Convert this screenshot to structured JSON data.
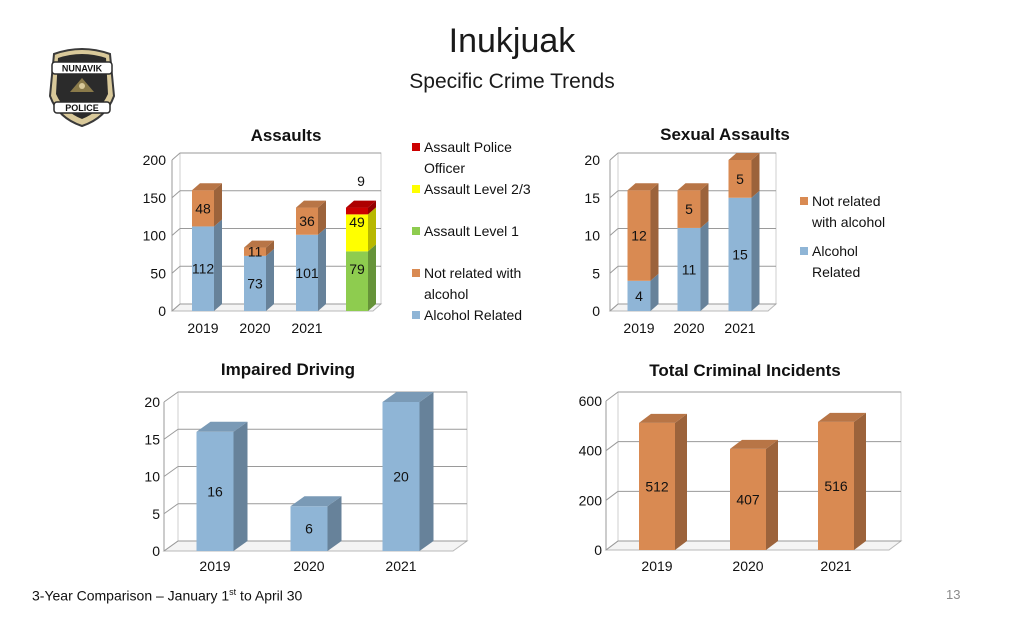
{
  "page": {
    "title": "Inukjuak",
    "subtitle": "Specific Crime Trends",
    "footer_text": "3-Year Comparison – January 1",
    "footer_sup": "st",
    "footer_tail": " to April 30",
    "page_number": "13",
    "logo": {
      "top_text": "NUNAVIK",
      "bottom_text": "POLICE"
    }
  },
  "colors": {
    "blue": "#8fb5d6",
    "orange": "#d98a52",
    "green": "#8ecc4f",
    "yellow": "#ffff00",
    "red": "#cc0000"
  },
  "chart_data": [
    {
      "type": "bar",
      "stacked": true,
      "title": "Assaults",
      "categories": [
        "2019",
        "2020",
        "2021",
        ""
      ],
      "ylim": [
        0,
        200
      ],
      "yticks": [
        0,
        50,
        100,
        150,
        200
      ],
      "grid": true,
      "legend_position": "right",
      "series": [
        {
          "name": "Alcohol Related",
          "color": "#8fb5d6",
          "values": [
            112,
            73,
            101,
            null
          ]
        },
        {
          "name": "Not related with alcohol",
          "color": "#d98a52",
          "values": [
            48,
            11,
            36,
            null
          ]
        },
        {
          "name": "Assault Level 1",
          "color": "#8ecc4f",
          "values": [
            null,
            null,
            null,
            79
          ]
        },
        {
          "name": "Assault Level 2/3",
          "color": "#ffff00",
          "values": [
            null,
            null,
            null,
            49
          ]
        },
        {
          "name": "Assault Police Officer",
          "color": "#cc0000",
          "values": [
            null,
            null,
            null,
            9
          ]
        }
      ],
      "legend_lines": [
        [
          "Assault Police",
          "Officer"
        ],
        [
          "Assault Level 2/3"
        ],
        [
          "Assault Level 1"
        ],
        [
          "Not related with",
          "alcohol"
        ],
        [
          "Alcohol Related"
        ]
      ]
    },
    {
      "type": "bar",
      "stacked": true,
      "title": "Sexual Assaults",
      "categories": [
        "2019",
        "2020",
        "2021"
      ],
      "ylim": [
        0,
        20
      ],
      "yticks": [
        0,
        5,
        10,
        15,
        20
      ],
      "grid": true,
      "legend_position": "right",
      "series": [
        {
          "name": "Alcohol Related",
          "color": "#8fb5d6",
          "values": [
            4,
            11,
            15
          ]
        },
        {
          "name": "Not related with alcohol",
          "color": "#d98a52",
          "values": [
            12,
            5,
            5
          ]
        }
      ],
      "legend_lines": [
        [
          "Not related",
          "with alcohol"
        ],
        [
          "Alcohol",
          "Related"
        ]
      ]
    },
    {
      "type": "bar",
      "title": "Impaired Driving",
      "categories": [
        "2019",
        "2020",
        "2021"
      ],
      "ylim": [
        0,
        20
      ],
      "yticks": [
        0,
        5,
        10,
        15,
        20
      ],
      "grid": true,
      "series": [
        {
          "color": "#8fb5d6",
          "values": [
            16,
            6,
            20
          ]
        }
      ]
    },
    {
      "type": "bar",
      "title": "Total Criminal Incidents",
      "categories": [
        "2019",
        "2020",
        "2021"
      ],
      "ylim": [
        0,
        600
      ],
      "yticks": [
        0,
        200,
        400,
        600
      ],
      "grid": true,
      "series": [
        {
          "color": "#d98a52",
          "values": [
            512,
            407,
            516
          ]
        }
      ]
    }
  ]
}
